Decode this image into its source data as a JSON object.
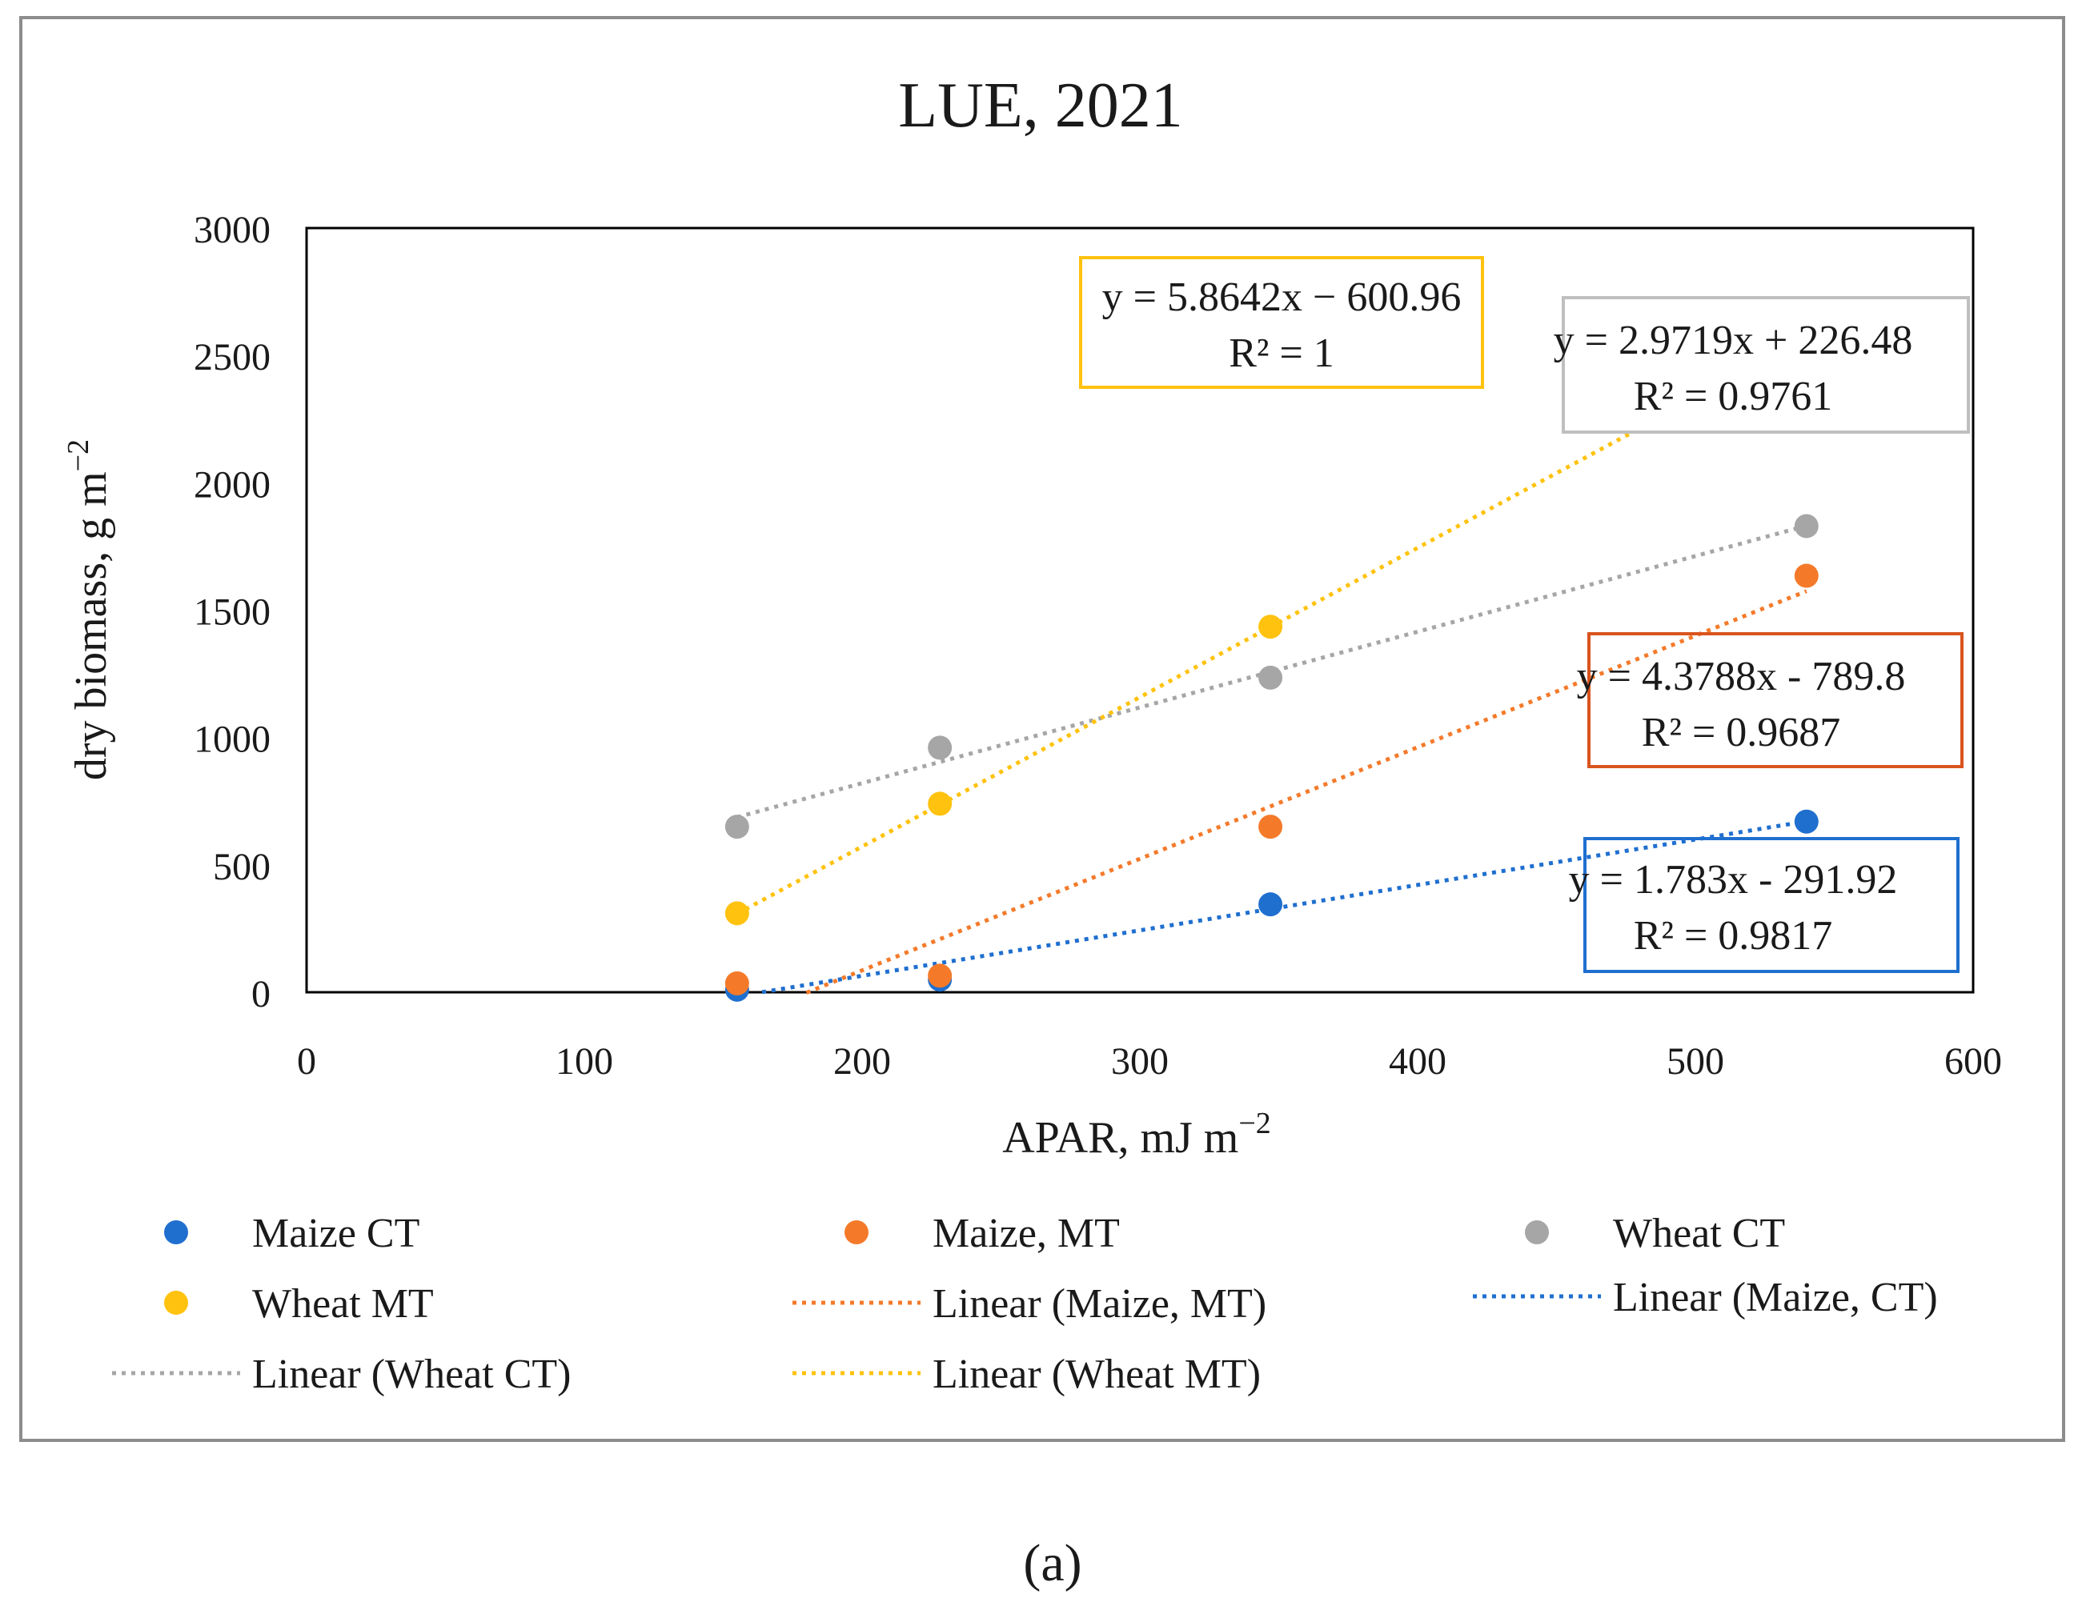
{
  "chart_data": {
    "type": "scatter",
    "title": "LUE, 2021",
    "xlabel": "APAR, mJ m",
    "xlabel_sup": "−2",
    "ylabel": "dry biomass, g m",
    "ylabel_sup": "−2",
    "xlim": [
      0,
      600
    ],
    "ylim": [
      0,
      3000
    ],
    "xticks": [
      "0",
      "100",
      "200",
      "300",
      "400",
      "500",
      "600"
    ],
    "yticks": [
      "0",
      "500",
      "1000",
      "1500",
      "2000",
      "2500",
      "3000"
    ],
    "grid": false,
    "legend_position": "bottom",
    "series": [
      {
        "name": "Maize CT",
        "color": "#1f6fcf",
        "x": [
          155,
          228,
          347,
          540
        ],
        "y": [
          10,
          50,
          345,
          670
        ]
      },
      {
        "name": "Maize, MT",
        "color": "#f47a2a",
        "x": [
          155,
          228,
          347,
          540
        ],
        "y": [
          35,
          65,
          650,
          1635
        ]
      },
      {
        "name": "Wheat CT",
        "color": "#a6a6a6",
        "x": [
          155,
          228,
          347,
          540
        ],
        "y": [
          650,
          960,
          1235,
          1830
        ]
      },
      {
        "name": "Wheat MT",
        "color": "#ffc20e",
        "x": [
          155,
          228,
          347
        ],
        "y": [
          310,
          740,
          1435
        ]
      }
    ],
    "trendlines": [
      {
        "name": "Linear (Maize, MT)",
        "color": "#f47a2a",
        "x_range": [
          180,
          540
        ],
        "slope": 4.3788,
        "intercept": -789.8
      },
      {
        "name": "Linear (Maize, CT)",
        "color": "#1f6fcf",
        "x_range": [
          164,
          540
        ],
        "slope": 1.783,
        "intercept": -291.92
      },
      {
        "name": "Linear (Wheat CT)",
        "color": "#a6a6a6",
        "x_range": [
          155,
          540
        ],
        "slope": 2.9719,
        "intercept": 226.48
      },
      {
        "name": "Linear (Wheat MT)",
        "color": "#ffc20e",
        "x_range": [
          155,
          540
        ],
        "slope": 5.8642,
        "intercept": -600.96
      }
    ],
    "annotations": [
      {
        "line1": "y = 5.8642x − 600.96",
        "line2": "R² = 1",
        "border": "#ffc20e"
      },
      {
        "line1": "y = 2.9719x + 226.48",
        "line2": "R² = 0.9761",
        "border": "#bfbfbf"
      },
      {
        "line1": "y = 4.3788x - 789.8",
        "line2": "R² = 0.9687",
        "border": "#d9541e"
      },
      {
        "line1": "y = 1.783x - 291.92",
        "line2": "R² = 0.9817",
        "border": "#1f6fcf"
      }
    ],
    "legend": [
      {
        "label": "Maize CT",
        "kind": "marker",
        "color": "#1f6fcf"
      },
      {
        "label": "Maize, MT",
        "kind": "marker",
        "color": "#f47a2a"
      },
      {
        "label": "Wheat CT",
        "kind": "marker",
        "color": "#a6a6a6"
      },
      {
        "label": "Wheat MT",
        "kind": "marker",
        "color": "#ffc20e"
      },
      {
        "label": "Linear (Maize, MT)",
        "kind": "line",
        "color": "#f47a2a"
      },
      {
        "label": "Linear (Maize, CT)",
        "kind": "line",
        "color": "#1f6fcf"
      },
      {
        "label": "Linear (Wheat CT)",
        "kind": "line",
        "color": "#a6a6a6"
      },
      {
        "label": "Linear (Wheat MT)",
        "kind": "line",
        "color": "#ffc20e"
      }
    ]
  },
  "caption": "(a)"
}
